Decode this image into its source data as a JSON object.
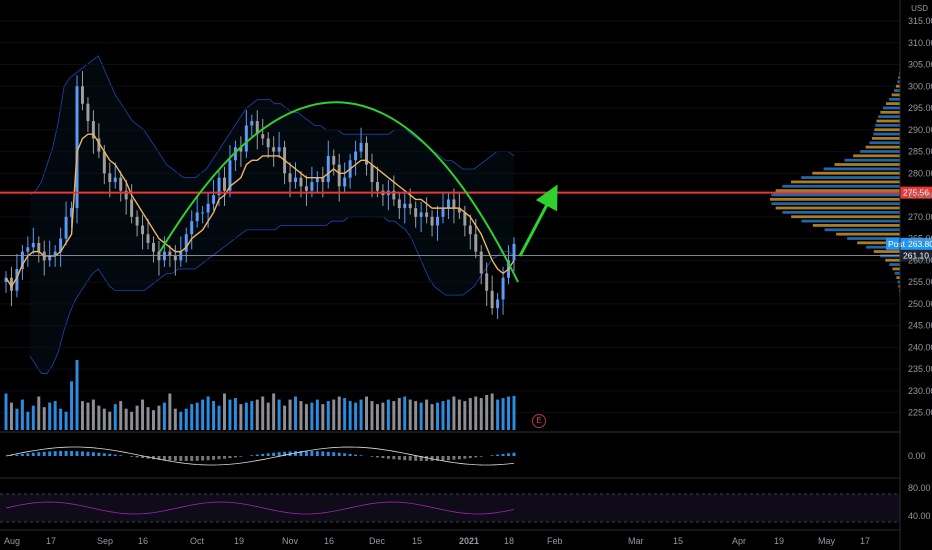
{
  "currency": "USD",
  "earnings_marker": "E",
  "chart_data": {
    "type": "candlestick",
    "price_axis": {
      "ylim": [
        221,
        318
      ],
      "ticks": [
        225,
        230,
        235,
        240,
        245,
        250,
        255,
        260,
        265,
        270,
        275,
        280,
        285,
        290,
        295,
        300,
        305,
        310,
        315
      ]
    },
    "date_ticks": [
      "Aug",
      "17",
      "Sep",
      "16",
      "Oct",
      "19",
      "Nov",
      "16",
      "Dec",
      "15",
      "2021",
      "18",
      "Feb",
      "Mar",
      "15",
      "Apr",
      "19",
      "May",
      "17"
    ],
    "bold_date": "2021",
    "horizontal_lines": [
      {
        "label": "275.56",
        "value": 275.56,
        "color": "#e53935"
      },
      {
        "label": "261.10",
        "value": 261.1,
        "color": "#9598a1"
      }
    ],
    "price_tags": [
      {
        "prefix": "Post",
        "label": "263.80",
        "value": 263.8,
        "color": "#2196f3"
      },
      {
        "prefix": "",
        "label": "261.10",
        "value": 261.1,
        "color": "#ffffff"
      }
    ],
    "closes": [
      256,
      253,
      258,
      262,
      263,
      264,
      262,
      260,
      261,
      262,
      265,
      270,
      272,
      300,
      296,
      292,
      288,
      285,
      280,
      278,
      279,
      276,
      274,
      270,
      268,
      266,
      264,
      262,
      260,
      262,
      261,
      260,
      262,
      266,
      269,
      271,
      271,
      273,
      275,
      279,
      276,
      283,
      286,
      285,
      291,
      292,
      289,
      288,
      286,
      285,
      286,
      280,
      278,
      279,
      277,
      276,
      278,
      279,
      278,
      284,
      282,
      277,
      279,
      283,
      285,
      287,
      282,
      278,
      276,
      275,
      276,
      274,
      272,
      273,
      272,
      270,
      271,
      270,
      268,
      270,
      272,
      274,
      272,
      271,
      268,
      266,
      262,
      257,
      253,
      249,
      251,
      256,
      260,
      263.8
    ],
    "ema_series": [
      256,
      254,
      256,
      259,
      261,
      262,
      262,
      261,
      261,
      261,
      262,
      264,
      266,
      285,
      288,
      289,
      289,
      287,
      285,
      283,
      282,
      280,
      278,
      275,
      273,
      271,
      269,
      267,
      265,
      264,
      263,
      262,
      262,
      263,
      265,
      266,
      267,
      269,
      271,
      274,
      275,
      277,
      278,
      279,
      282,
      283,
      283,
      284,
      284,
      284,
      284,
      283,
      282,
      281,
      280,
      279,
      279,
      279,
      279,
      280,
      281,
      280,
      280,
      281,
      282,
      283,
      283,
      282,
      281,
      280,
      279,
      278,
      277,
      276,
      275,
      274,
      274,
      273,
      272,
      272,
      272,
      272,
      272,
      272,
      271,
      270,
      268,
      266,
      263,
      260,
      258,
      257,
      258,
      260
    ],
    "bb_upper": [
      275,
      276,
      278,
      282,
      286,
      292,
      300,
      302,
      303,
      304,
      305,
      306,
      307,
      304,
      301,
      298,
      296,
      294,
      292,
      291,
      290,
      288,
      286,
      284,
      282,
      281,
      280,
      279,
      279,
      279,
      280,
      281,
      283,
      285,
      287,
      289,
      291,
      293,
      295,
      296,
      297,
      297,
      297,
      296,
      296,
      295,
      294,
      294,
      293,
      292,
      291,
      291,
      290,
      290,
      290,
      289,
      289,
      289,
      289,
      289,
      289,
      289,
      289,
      289,
      290,
      290,
      290,
      289,
      288,
      287,
      286,
      285,
      284,
      283,
      283,
      282,
      281,
      281,
      281,
      282,
      283,
      284,
      285,
      285,
      285,
      284
    ],
    "bb_lower": [
      238,
      236,
      234,
      234,
      236,
      239,
      244,
      248,
      251,
      253,
      255,
      257,
      258,
      256,
      254,
      253,
      253,
      253,
      253,
      253,
      253,
      254,
      255,
      256,
      257,
      257,
      258,
      258,
      258,
      258,
      259,
      260,
      261,
      262,
      263,
      264,
      265,
      266,
      267,
      267,
      267,
      267,
      267,
      267,
      268,
      268,
      268,
      268,
      268,
      268,
      268,
      268,
      268,
      269,
      269,
      269,
      270,
      270,
      270,
      270,
      270,
      270,
      270,
      269,
      269,
      268,
      267,
      265,
      262,
      259,
      256,
      254,
      253,
      252,
      252,
      252,
      252,
      253,
      254,
      256,
      258,
      260,
      261,
      262,
      262,
      261
    ],
    "dome_curve": {
      "apex_value": 298,
      "color": "#2ed12e"
    },
    "projection_arrow": {
      "color": "#2ed12e"
    },
    "volume": [
      120,
      90,
      70,
      100,
      60,
      80,
      110,
      75,
      90,
      95,
      70,
      60,
      160,
      230,
      95,
      90,
      100,
      80,
      70,
      60,
      85,
      95,
      70,
      60,
      80,
      100,
      75,
      65,
      80,
      90,
      120,
      70,
      60,
      70,
      85,
      90,
      100,
      110,
      95,
      80,
      120,
      100,
      105,
      85,
      90,
      95,
      100,
      110,
      90,
      120,
      100,
      80,
      100,
      110,
      95,
      85,
      90,
      100,
      85,
      95,
      100,
      110,
      105,
      95,
      90,
      100,
      110,
      95,
      85,
      90,
      100,
      95,
      105,
      110,
      100,
      95,
      90,
      100,
      85,
      90,
      95,
      100,
      110,
      100,
      95,
      105,
      110,
      105,
      115,
      120,
      100,
      105,
      110,
      112
    ],
    "volume_profile_note": "horizontal histogram of traded volume by price level, peak near 275",
    "macd": {
      "zero_label": "0.00"
    },
    "rsi": {
      "levels": [
        "80.00",
        "40.00"
      ]
    }
  }
}
